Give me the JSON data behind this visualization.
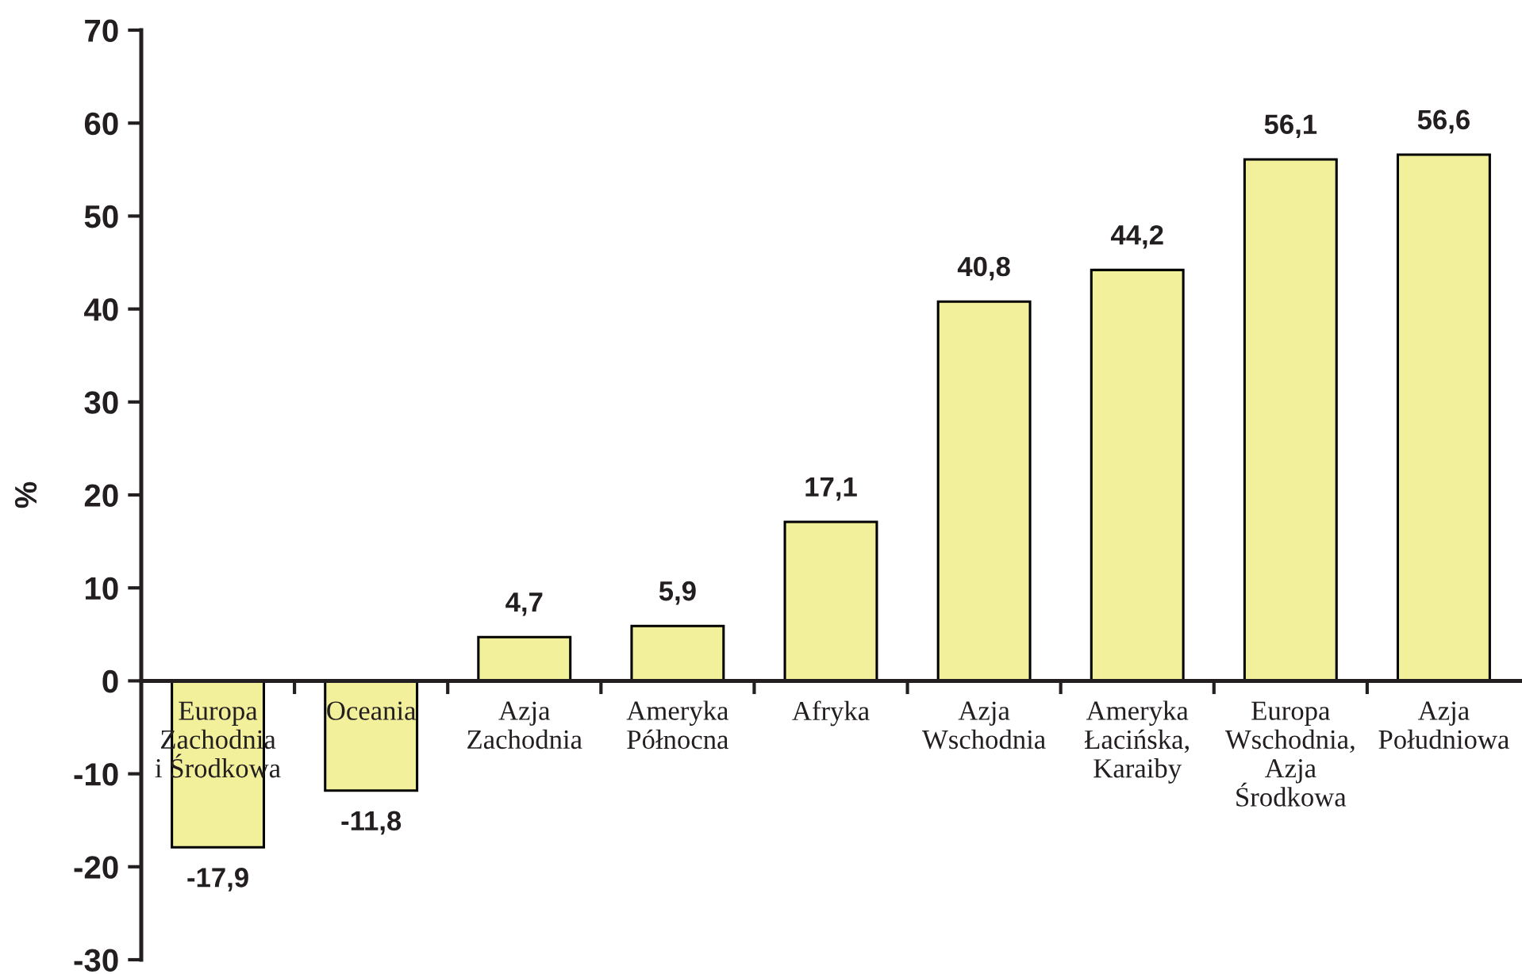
{
  "chart_data": {
    "type": "bar",
    "ylabel": "%",
    "categories": [
      "Europa\nZachodnia\ni Środkowa",
      "Oceania",
      "Azja\nZachodnia",
      "Ameryka\nPółnocna",
      "Afryka",
      "Azja\nWschodnia",
      "Ameryka\nŁacińska,\nKaraiby",
      "Europa\nWschodnia,\nAzja\nŚrodkowa",
      "Azja\nPołudniowa"
    ],
    "values": [
      -17.9,
      -11.8,
      4.7,
      5.9,
      17.1,
      40.8,
      44.2,
      56.1,
      56.6
    ],
    "value_labels": [
      "-17,9",
      "-11,8",
      "4,7",
      "5,9",
      "17,1",
      "40,8",
      "44,2",
      "56,1",
      "56,6"
    ],
    "color": "#f3f09b",
    "ylim": [
      -30,
      70
    ],
    "yticks": [
      -30,
      -20,
      -10,
      0,
      10,
      20,
      30,
      40,
      50,
      60,
      70
    ],
    "grid": false
  }
}
